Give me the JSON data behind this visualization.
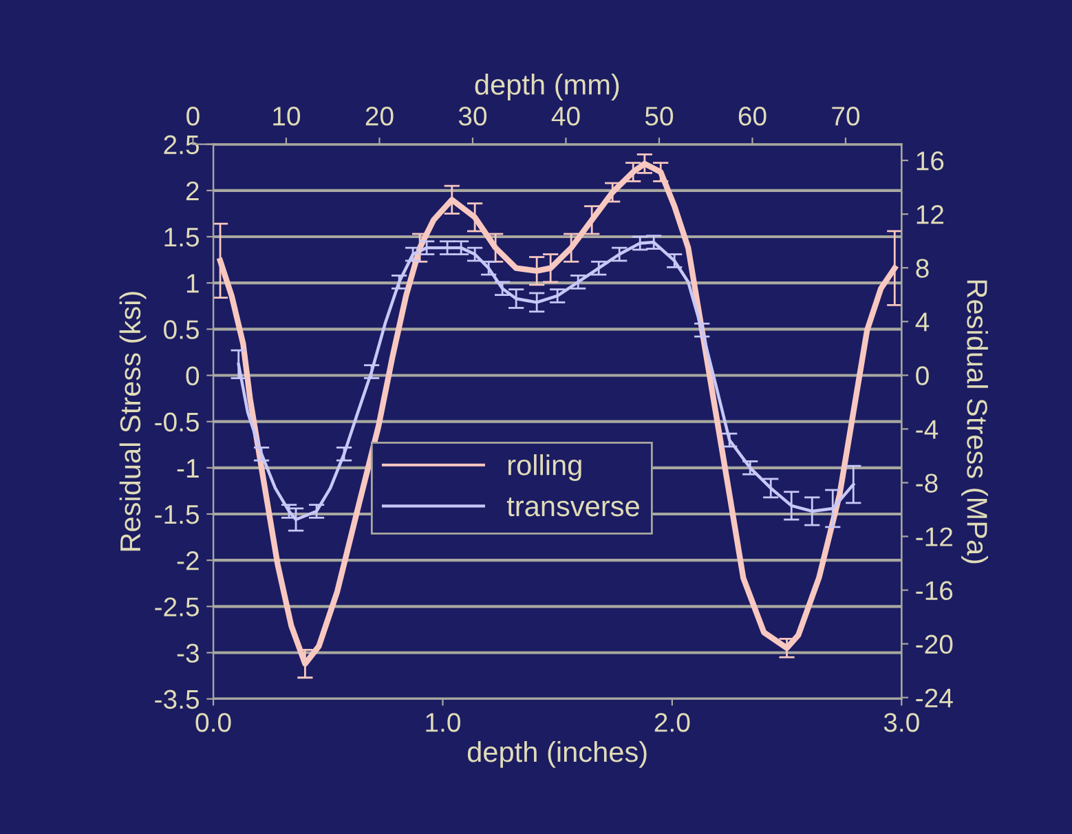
{
  "chart_data": {
    "type": "line",
    "xlabel": "depth (inches)",
    "ylabel": "Residual Stress (ksi)",
    "y2label": "Residual Stress (MPa)",
    "x2label": "depth (mm)",
    "xlim": [
      0,
      3
    ],
    "xticks": [
      {
        "value": 0,
        "label": "0.0"
      },
      {
        "value": 1,
        "label": "1.0"
      },
      {
        "value": 2,
        "label": "2.0"
      },
      {
        "value": 3,
        "label": "3.0"
      }
    ],
    "ylim": [
      -3.5,
      2.5
    ],
    "yticks": [
      -3.5,
      -3,
      -2.5,
      -2,
      -1.5,
      -1,
      -0.5,
      0,
      0.5,
      1,
      1.5,
      2,
      2.5
    ],
    "y2lim": [
      -24.1,
      17.2
    ],
    "y2ticks": [
      -24,
      -20,
      -16,
      -12,
      -8,
      -4,
      0,
      4,
      8,
      12,
      16
    ],
    "x2lim": [
      0,
      76
    ],
    "x2ticks": [
      0,
      10,
      20,
      30,
      40,
      50,
      60,
      70
    ],
    "grid": "y",
    "legend": "center",
    "series": [
      {
        "name": "rolling",
        "color": "#f8c8c0",
        "x": [
          0.03,
          0.08,
          0.13,
          0.16,
          0.22,
          0.28,
          0.34,
          0.4,
          0.46,
          0.54,
          0.63,
          0.72,
          0.78,
          0.84,
          0.9,
          0.96,
          1.04,
          1.14,
          1.23,
          1.32,
          1.41,
          1.47,
          1.56,
          1.65,
          1.74,
          1.83,
          1.88,
          1.95,
          2.01,
          2.07,
          2.13,
          2.19,
          2.25,
          2.31,
          2.4,
          2.5,
          2.55,
          2.64,
          2.73,
          2.79,
          2.85,
          2.91,
          2.97
        ],
        "values": [
          1.24,
          0.86,
          0.34,
          -0.25,
          -1.15,
          -2.04,
          -2.71,
          -3.12,
          -2.93,
          -2.34,
          -1.44,
          -0.55,
          0.19,
          0.86,
          1.38,
          1.68,
          1.9,
          1.71,
          1.38,
          1.16,
          1.13,
          1.16,
          1.38,
          1.68,
          1.98,
          2.2,
          2.29,
          2.2,
          1.83,
          1.38,
          0.49,
          -0.4,
          -1.29,
          -2.19,
          -2.78,
          -2.95,
          -2.81,
          -2.19,
          -1.29,
          -0.4,
          0.49,
          0.94,
          1.16
        ],
        "errors": [
          0.4,
          null,
          null,
          null,
          null,
          null,
          null,
          0.15,
          null,
          null,
          null,
          null,
          null,
          null,
          0.15,
          null,
          0.15,
          0.15,
          0.15,
          null,
          0.15,
          0.15,
          0.15,
          0.15,
          0.1,
          0.1,
          0.1,
          0.1,
          null,
          null,
          null,
          null,
          null,
          null,
          null,
          0.1,
          null,
          null,
          null,
          null,
          null,
          null,
          0.4
        ]
      },
      {
        "name": "transverse",
        "color": "#c8c8f8",
        "x": [
          0.11,
          0.15,
          0.21,
          0.27,
          0.33,
          0.36,
          0.45,
          0.51,
          0.57,
          0.63,
          0.69,
          0.75,
          0.81,
          0.87,
          0.93,
          1.02,
          1.08,
          1.14,
          1.2,
          1.26,
          1.32,
          1.41,
          1.5,
          1.59,
          1.68,
          1.77,
          1.86,
          1.92,
          2.01,
          2.07,
          2.13,
          2.19,
          2.25,
          2.34,
          2.43,
          2.52,
          2.61,
          2.7,
          2.79
        ],
        "values": [
          0.12,
          -0.4,
          -0.85,
          -1.22,
          -1.47,
          -1.56,
          -1.47,
          -1.22,
          -0.85,
          -0.4,
          0.04,
          0.57,
          1.01,
          1.31,
          1.38,
          1.38,
          1.38,
          1.31,
          1.16,
          0.94,
          0.83,
          0.79,
          0.86,
          1.01,
          1.16,
          1.31,
          1.43,
          1.44,
          1.24,
          1.01,
          0.49,
          -0.1,
          -0.7,
          -1.0,
          -1.22,
          -1.41,
          -1.47,
          -1.44,
          -1.18
        ],
        "errors": [
          0.15,
          null,
          0.07,
          null,
          0.07,
          0.12,
          0.07,
          null,
          0.07,
          null,
          0.07,
          null,
          0.07,
          0.07,
          0.07,
          0.07,
          0.07,
          0.07,
          0.07,
          0.07,
          0.1,
          0.1,
          0.07,
          0.07,
          0.07,
          0.07,
          0.07,
          0.07,
          0.07,
          null,
          0.07,
          null,
          0.07,
          0.07,
          0.1,
          0.15,
          0.15,
          0.2,
          0.2
        ]
      }
    ]
  }
}
